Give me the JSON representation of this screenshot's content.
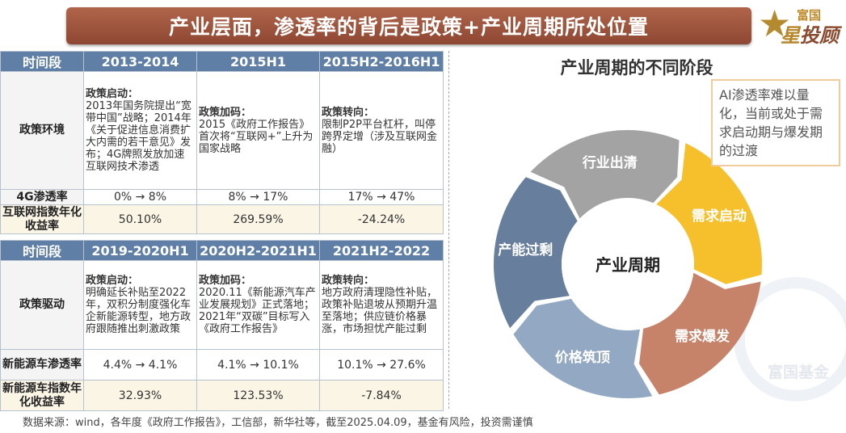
{
  "title": "产业层面，渗透率的背后是政策+产业周期所处位置",
  "logo": {
    "line1": "富国",
    "line2_a": "星",
    "line2_b": "投顾"
  },
  "table1": {
    "headers": [
      "时间段",
      "2013-2014",
      "2015H1",
      "2015H2-2016H1"
    ],
    "policy_row": {
      "label": "政策环境",
      "cells": [
        {
          "bold": "政策启动：",
          "text": "2013年国务院提出“宽带中国”战略；2014年《关于促进信息消费扩大内需的若干意见》发布；4G牌照发放加速互联网技术渗透"
        },
        {
          "bold": "政策加码：",
          "text": "2015《政府工作报告》首次将“互联网+”上升为国家战略"
        },
        {
          "bold": "政策转向：",
          "text": "限制P2P平台杠杆，叫停跨界定增（涉及互联网金融）"
        }
      ]
    },
    "rows": [
      {
        "label": "4G渗透率",
        "values": [
          "0% → 8%",
          "8% → 17%",
          "17% → 47%"
        ]
      },
      {
        "label": "互联网指数年化收益率",
        "values": [
          "50.10%",
          "269.59%",
          "-24.24%"
        ]
      }
    ]
  },
  "table2": {
    "headers": [
      "时间段",
      "2019-2020H1",
      "2020H2-2021H1",
      "2021H2-2022"
    ],
    "policy_row": {
      "label": "政策驱动",
      "cells": [
        {
          "bold": "政策启动：",
          "text": "明确延长补贴至2022年，双积分制度强化车企新能源转型，地方政府跟随推出刺激政策"
        },
        {
          "bold": "政策加码：",
          "text": "2020.11《新能源汽车产业发展规划》正式落地；2021年“双碳”目标写入《政府工作报告》"
        },
        {
          "bold": "政策转向：",
          "text": "地方政府清理隐性补贴，政策补贴退坡从预期升温至落地；供应链价格暴涨，市场担忧产能过剩"
        }
      ]
    },
    "rows": [
      {
        "label": "新能源车渗透率",
        "values": [
          "4.4% → 4.1%",
          "4.1% → 10.1%",
          "10.1% → 27.6%"
        ]
      },
      {
        "label": "新能源车指数年化收益率",
        "values": [
          "32.93%",
          "123.53%",
          "-7.84%"
        ]
      }
    ]
  },
  "cycle": {
    "title": "产业周期的不同阶段",
    "center": "产业周期",
    "stages": [
      {
        "label": "行业出清",
        "color": "#a3a3a3"
      },
      {
        "label": "需求启动",
        "color": "#f6bf2c"
      },
      {
        "label": "需求爆发",
        "color": "#c7836a"
      },
      {
        "label": "价格筑顶",
        "color": "#93a8c3"
      },
      {
        "label": "产能过剩",
        "color": "#677f9d"
      }
    ],
    "note": "AI渗透率难以量化，当前或处于需求启动期与爆发期的过渡",
    "watermark": "富国基金"
  },
  "source": "数据来源：wind，各年度《政府工作报告》，工信部，新华社等，截至2025.04.09，基金有风险，投资需谨慎"
}
